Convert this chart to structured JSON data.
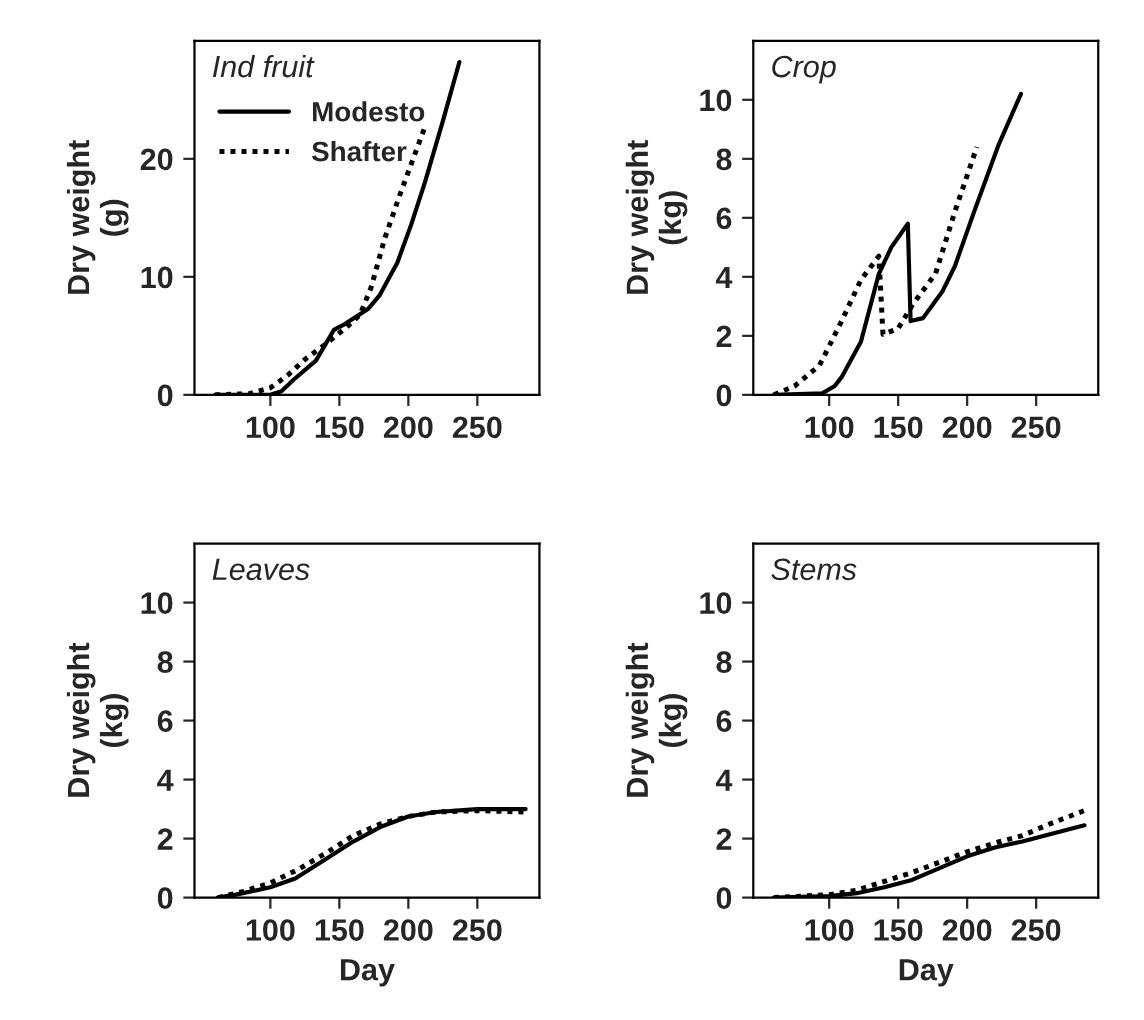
{
  "chart_data": [
    {
      "type": "line",
      "title": "Ind fruit",
      "ylabel": "Dry weight\n(g)",
      "xlim": [
        45,
        295
      ],
      "xticks": [
        100,
        150,
        200,
        250
      ],
      "ylim": [
        0,
        30
      ],
      "yticks": [
        0,
        10,
        20
      ],
      "legend": "top left",
      "grid": false,
      "series": [
        {
          "name": "Modesto",
          "color": "#000000",
          "line_style": "solid",
          "x": [
            60,
            100,
            108,
            117,
            133,
            146,
            154,
            171,
            179,
            192,
            202,
            212,
            225,
            237
          ],
          "values": [
            0,
            0,
            0.3,
            1.3,
            2.9,
            5.5,
            6,
            7.3,
            8.4,
            11.2,
            14.4,
            18,
            23.2,
            28.2
          ]
        },
        {
          "name": "Shafter",
          "color": "#000000",
          "line_style": "dotted",
          "x": [
            60,
            85,
            100,
            113,
            125,
            140,
            155,
            165,
            173,
            183,
            194,
            212
          ],
          "values": [
            0,
            0.1,
            0.6,
            1.7,
            3,
            4.3,
            5.7,
            6.8,
            9.1,
            13.3,
            17,
            22.7
          ]
        }
      ]
    },
    {
      "type": "line",
      "title": "Crop",
      "ylabel": "Dry weight\n(kg)",
      "xlim": [
        45,
        295
      ],
      "xticks": [
        100,
        150,
        200,
        250
      ],
      "ylim": [
        0,
        12
      ],
      "yticks": [
        0,
        2,
        4,
        6,
        8,
        10
      ],
      "grid": false,
      "series": [
        {
          "color": "#000000",
          "line_style": "solid",
          "x": [
            60,
            95,
            104,
            109,
            123,
            136,
            145,
            157,
            159,
            168,
            182,
            191,
            205,
            223,
            239
          ],
          "values": [
            0,
            0.05,
            0.3,
            0.6,
            1.8,
            4.1,
            5,
            5.8,
            2.5,
            2.6,
            3.5,
            4.35,
            6.2,
            8.5,
            10.2
          ]
        },
        {
          "color": "#000000",
          "line_style": "dotted",
          "x": [
            60,
            75,
            93,
            109,
            123,
            136,
            139,
            150,
            161,
            177,
            191,
            207
          ],
          "values": [
            0,
            0.3,
            1,
            2.5,
            3.9,
            4.7,
            2.05,
            2.25,
            3.1,
            4.1,
            6.2,
            8.4
          ]
        }
      ]
    },
    {
      "type": "line",
      "title": "Leaves",
      "xlabel": "Day",
      "ylabel": "Dry weight\n(kg)",
      "xlim": [
        45,
        295
      ],
      "xticks": [
        100,
        150,
        200,
        250
      ],
      "ylim": [
        0,
        12
      ],
      "yticks": [
        0,
        2,
        4,
        6,
        8,
        10
      ],
      "grid": false,
      "series": [
        {
          "color": "#000000",
          "line_style": "solid",
          "x": [
            62,
            75,
            100,
            118,
            140,
            160,
            180,
            200,
            220,
            250,
            285
          ],
          "values": [
            0,
            0.1,
            0.35,
            0.65,
            1.3,
            1.9,
            2.4,
            2.75,
            2.9,
            3,
            3
          ]
        },
        {
          "color": "#000000",
          "line_style": "dotted",
          "x": [
            62,
            80,
            100,
            120,
            140,
            160,
            180,
            200,
            220,
            250,
            285
          ],
          "values": [
            0,
            0.2,
            0.5,
            0.95,
            1.5,
            2.1,
            2.5,
            2.75,
            2.9,
            2.95,
            2.9
          ]
        }
      ]
    },
    {
      "type": "line",
      "title": "Stems",
      "xlabel": "Day",
      "ylabel": "Dry weight\n(kg)",
      "xlim": [
        45,
        295
      ],
      "xticks": [
        100,
        150,
        200,
        250
      ],
      "ylim": [
        0,
        12
      ],
      "yticks": [
        0,
        2,
        4,
        6,
        8,
        10
      ],
      "grid": false,
      "series": [
        {
          "color": "#000000",
          "line_style": "solid",
          "x": [
            60,
            100,
            120,
            140,
            160,
            180,
            200,
            220,
            240,
            260,
            285
          ],
          "values": [
            0,
            0.05,
            0.15,
            0.35,
            0.6,
            1,
            1.4,
            1.7,
            1.9,
            2.15,
            2.45
          ]
        },
        {
          "color": "#000000",
          "line_style": "dotted",
          "x": [
            60,
            100,
            120,
            140,
            160,
            180,
            200,
            220,
            240,
            260,
            285
          ],
          "values": [
            0,
            0.1,
            0.25,
            0.55,
            0.85,
            1.2,
            1.55,
            1.85,
            2.1,
            2.5,
            2.95
          ]
        }
      ]
    }
  ]
}
